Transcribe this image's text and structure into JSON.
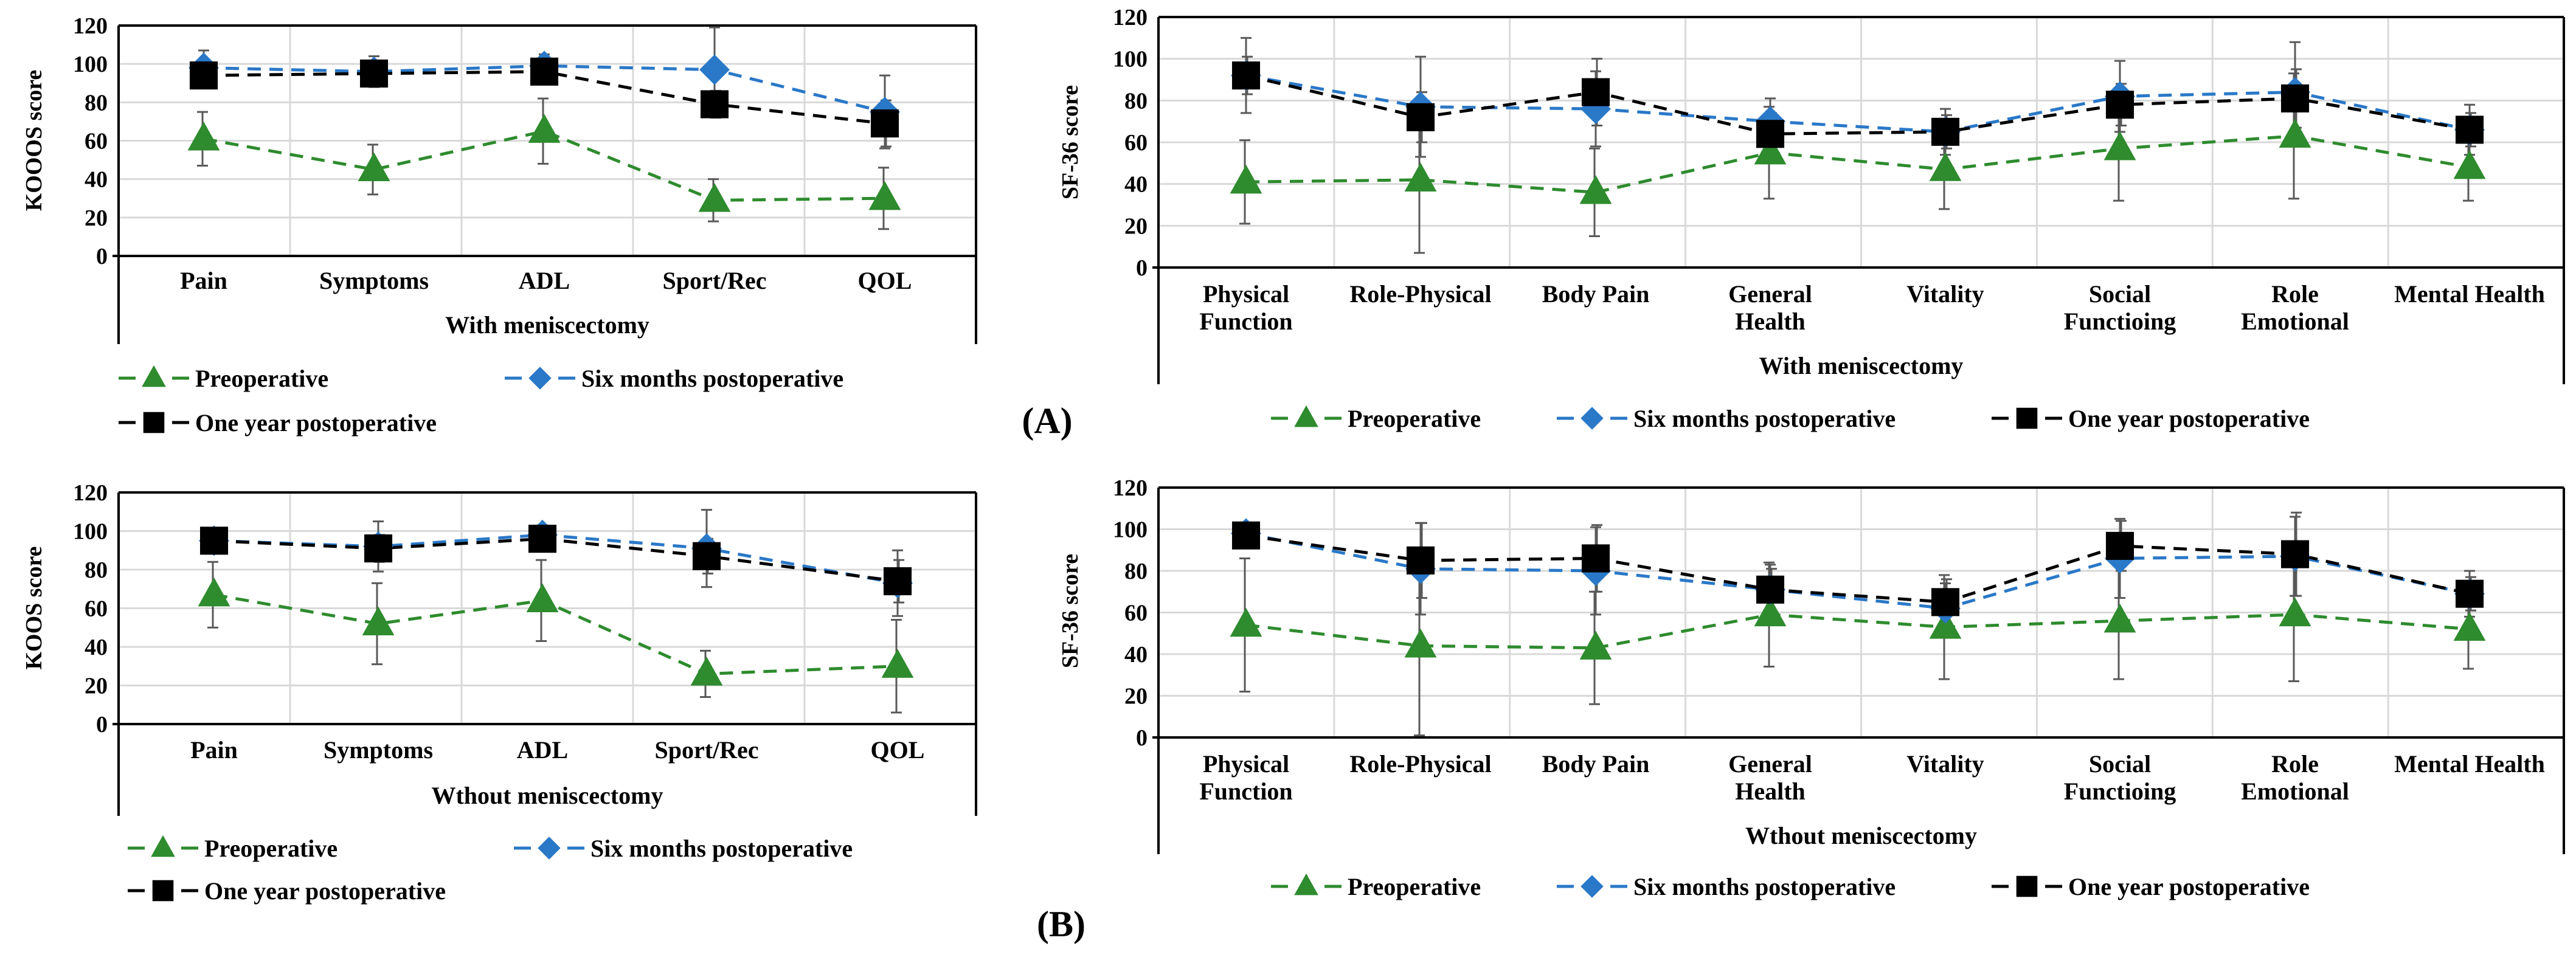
{
  "panel_labels": {
    "a": "(A)",
    "b": "(B)"
  },
  "legend": {
    "pre": "Preoperative",
    "six": "Six months postoperative",
    "one": "One year  postoperative"
  },
  "colors": {
    "pre": "#2e8b2e",
    "six": "#2a78c8",
    "one": "#000000",
    "err": "#595959",
    "grid": "#d9d9d9"
  },
  "icons": {
    "pre": "triangle-marker-icon",
    "six": "diamond-marker-icon",
    "one": "square-marker-icon"
  },
  "chart_data": [
    {
      "type": "line",
      "title": "",
      "ylabel": "KOOOS score",
      "xlabel": "With meniscectomy",
      "ylim": [
        0,
        120
      ],
      "yticks": [
        "0",
        "20",
        "40",
        "60",
        "80",
        "100",
        "120"
      ],
      "categories": [
        "Pain",
        "Symptoms",
        "ADL",
        "Sport/Rec",
        "QOL"
      ],
      "series": [
        {
          "name": "Preoperative",
          "values": [
            61,
            45,
            65,
            29,
            30
          ],
          "errors": [
            14,
            13,
            17,
            11,
            16
          ]
        },
        {
          "name": "Six months postoperative",
          "values": [
            98,
            96,
            99,
            97,
            75
          ],
          "errors": [
            9,
            8,
            6,
            22,
            19
          ]
        },
        {
          "name": "One year  postoperative",
          "values": [
            94,
            95,
            96,
            79,
            69
          ],
          "errors": [
            5,
            6,
            4,
            7,
            12
          ]
        }
      ]
    },
    {
      "type": "line",
      "title": "",
      "ylabel": "SF-36 score",
      "xlabel": "With meniscectomy",
      "ylim": [
        0,
        120
      ],
      "yticks": [
        "0",
        "20",
        "40",
        "60",
        "80",
        "100",
        "120"
      ],
      "categories": [
        "Physical Function",
        "Role-Physical",
        "Body Pain",
        "General Health",
        "Vitality",
        "Social Functioing",
        "Role Emotional",
        "Mental Health"
      ],
      "series": [
        {
          "name": "Preoperative",
          "values": [
            41,
            42,
            36,
            55,
            47,
            57,
            63,
            48
          ],
          "errors": [
            20,
            35,
            21,
            22,
            19,
            25,
            30,
            16
          ]
        },
        {
          "name": "Six months postoperative",
          "values": [
            92,
            77,
            76,
            70,
            65,
            82,
            84,
            66
          ],
          "errors": [
            18,
            24,
            18,
            11,
            11,
            17,
            24,
            12
          ]
        },
        {
          "name": "One year  postoperative",
          "values": [
            92,
            72,
            84,
            64,
            65,
            78,
            81,
            66
          ],
          "errors": [
            9,
            12,
            16,
            10,
            8,
            10,
            14,
            8
          ]
        }
      ]
    },
    {
      "type": "line",
      "title": "",
      "ylabel": "KOOS score",
      "xlabel": "Wthout meniscectomy",
      "ylim": [
        0,
        120
      ],
      "yticks": [
        "0",
        "20",
        "40",
        "60",
        "80",
        "100",
        "120"
      ],
      "categories": [
        "Pain",
        "Symptoms",
        "ADL",
        "Sport/Rec",
        "QOL"
      ],
      "series": [
        {
          "name": "Preoperative",
          "values": [
            67,
            52,
            64,
            26,
            30
          ],
          "errors": [
            17,
            21,
            21,
            12,
            24
          ]
        },
        {
          "name": "Six months postoperative",
          "values": [
            95,
            92,
            98,
            91,
            73
          ],
          "errors": [
            4,
            13,
            5,
            20,
            17
          ]
        },
        {
          "name": "One year  postoperative",
          "values": [
            95,
            91,
            96,
            87,
            74
          ],
          "errors": [
            4,
            7,
            5,
            9,
            11
          ]
        }
      ]
    },
    {
      "type": "line",
      "title": "",
      "ylabel": "SF-36 score",
      "xlabel": "Wthout meniscectomy",
      "ylim": [
        0,
        120
      ],
      "yticks": [
        "0",
        "20",
        "40",
        "60",
        "80",
        "100",
        "120"
      ],
      "categories": [
        "Physical Function",
        "Role-Physical",
        "Body Pain",
        "General Health",
        "Vitality",
        "Social Functioing",
        "Role Emotional",
        "Mental Health"
      ],
      "series": [
        {
          "name": "Preoperative",
          "values": [
            54,
            44,
            43,
            59,
            53,
            56,
            59,
            52
          ],
          "errors": [
            32,
            43,
            27,
            25,
            25,
            28,
            32,
            19
          ]
        },
        {
          "name": "Six months postoperative",
          "values": [
            98,
            81,
            80,
            71,
            62,
            86,
            87,
            69
          ],
          "errors": [
            4,
            22,
            21,
            12,
            12,
            19,
            19,
            11
          ]
        },
        {
          "name": "One year  postoperative",
          "values": [
            97,
            85,
            86,
            71,
            65,
            92,
            88,
            69
          ],
          "errors": [
            4,
            18,
            16,
            10,
            11,
            12,
            20,
            8
          ]
        }
      ]
    }
  ]
}
